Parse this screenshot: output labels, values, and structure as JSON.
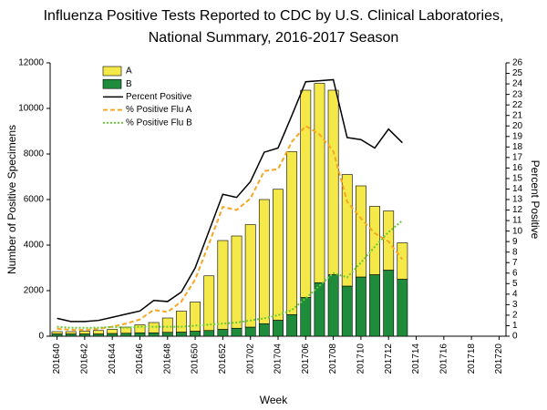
{
  "chart_data": {
    "type": "bar",
    "title": "Influenza Positive Tests Reported to CDC by U.S. Clinical Laboratories,",
    "subtitle": "National Summary, 2016-2017 Season",
    "x_label": "Week",
    "y_label": "Number of Positive Specimens",
    "y2_label": "Percent Positive",
    "stacked": true,
    "categories": [
      "201640",
      null,
      "201642",
      null,
      "201644",
      null,
      "201646",
      null,
      "201648",
      null,
      "201650",
      null,
      "201652",
      null,
      "201702",
      null,
      "201704",
      null,
      "201706",
      null,
      "201708",
      null,
      "201710",
      null,
      "201712",
      null,
      "201714",
      null,
      "201716",
      null,
      "201718",
      null,
      "201720"
    ],
    "series": [
      {
        "name": "A",
        "type": "bar",
        "color": "#f5e94a",
        "values": [
          100,
          100,
          120,
          150,
          180,
          270,
          350,
          450,
          630,
          920,
          1280,
          2400,
          3900,
          4050,
          4500,
          5450,
          5750,
          7150,
          9100,
          8750,
          8100,
          4900,
          4000,
          3000,
          2600,
          1600,
          null,
          null,
          null,
          null,
          null,
          null,
          null
        ]
      },
      {
        "name": "B",
        "type": "bar",
        "color": "#1e8c3a",
        "values": [
          100,
          100,
          100,
          100,
          120,
          130,
          150,
          150,
          170,
          180,
          220,
          250,
          300,
          350,
          400,
          550,
          700,
          950,
          1700,
          2350,
          2700,
          2200,
          2600,
          2700,
          2900,
          2500,
          null,
          null,
          null,
          null,
          null,
          null,
          null
        ]
      },
      {
        "name": "Percent Positive",
        "type": "line",
        "axis": "y2",
        "color": "#000000",
        "dash": "none",
        "values": [
          1.7,
          1.4,
          1.4,
          1.5,
          1.8,
          2.1,
          2.4,
          3.4,
          3.3,
          4.2,
          6.5,
          10.0,
          13.5,
          13.2,
          14.7,
          17.5,
          17.9,
          21.0,
          24.2,
          24.3,
          24.4,
          18.9,
          18.7,
          17.9,
          19.7,
          18.4,
          null,
          null,
          null,
          null,
          null,
          null,
          null
        ]
      },
      {
        "name": "% Positive Flu A",
        "type": "line",
        "axis": "y2",
        "color": "#f5a623",
        "dash": "5,3",
        "values": [
          0.7,
          0.6,
          0.6,
          0.7,
          0.9,
          1.2,
          1.6,
          2.5,
          2.3,
          3.3,
          5.4,
          8.8,
          12.3,
          12.0,
          13.1,
          15.7,
          15.9,
          18.5,
          20.0,
          19.2,
          17.6,
          12.8,
          11.2,
          9.8,
          9.0,
          7.3,
          null,
          null,
          null,
          null,
          null,
          null,
          null
        ]
      },
      {
        "name": "% Positive Flu B",
        "type": "line",
        "axis": "y2",
        "color": "#66cc33",
        "dash": "2,2",
        "values": [
          0.9,
          0.8,
          0.8,
          0.8,
          0.9,
          0.8,
          0.9,
          0.9,
          0.9,
          0.9,
          1.0,
          1.1,
          1.2,
          1.3,
          1.5,
          1.7,
          2.0,
          2.5,
          3.6,
          4.8,
          6.0,
          5.6,
          7.0,
          8.5,
          9.9,
          11.0,
          null,
          null,
          null,
          null,
          null,
          null,
          null
        ]
      }
    ],
    "ylim": [
      0,
      12000
    ],
    "yticks": [
      0,
      2000,
      4000,
      6000,
      8000,
      10000,
      12000
    ],
    "y2lim": [
      0,
      26
    ],
    "y2ticks": [
      0,
      1,
      2,
      3,
      4,
      5,
      6,
      7,
      8,
      9,
      10,
      11,
      12,
      13,
      14,
      15,
      16,
      17,
      18,
      19,
      20,
      21,
      22,
      23,
      24,
      25,
      26
    ]
  }
}
